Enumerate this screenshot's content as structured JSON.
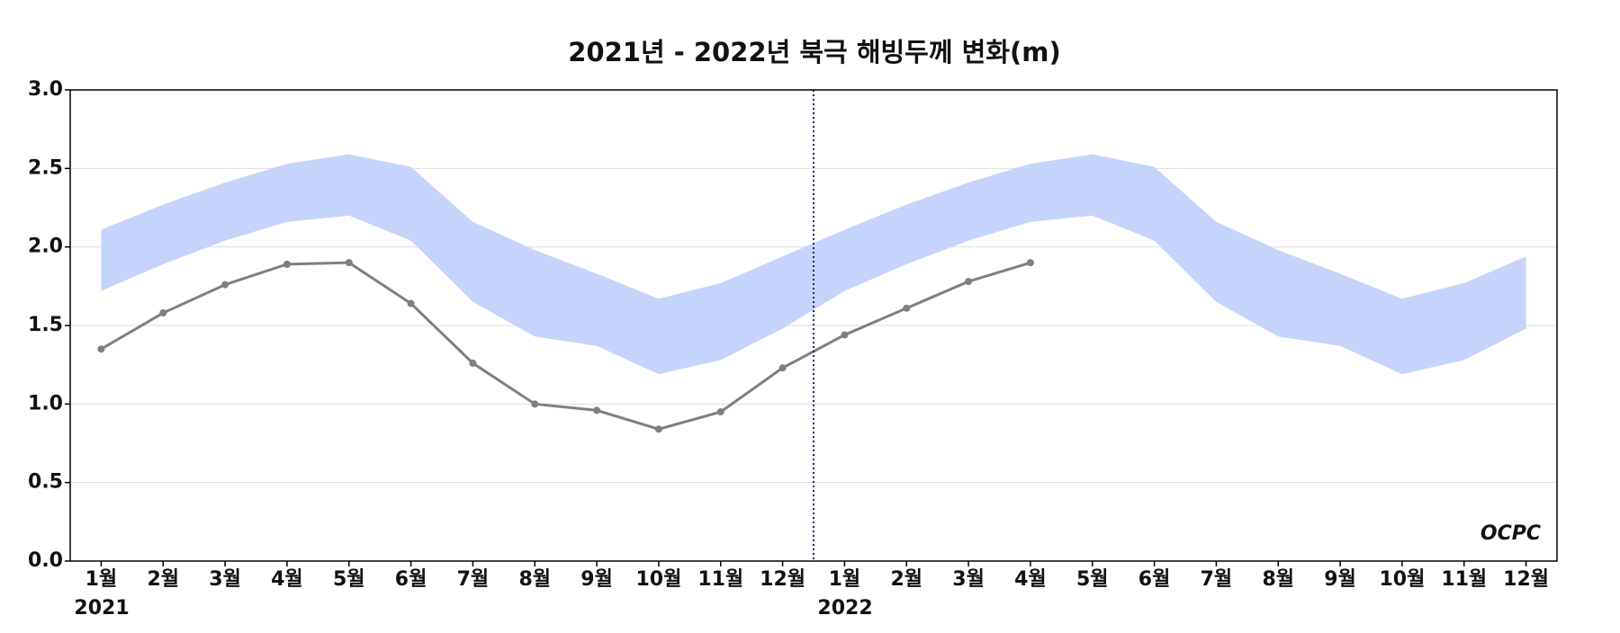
{
  "chart_data": {
    "type": "line_band",
    "title": "2021년 - 2022년 북극 해빙두께 변화(m)",
    "categories": [
      "1월",
      "2월",
      "3월",
      "4월",
      "5월",
      "6월",
      "7월",
      "8월",
      "9월",
      "10월",
      "11월",
      "12월",
      "1월",
      "2월",
      "3월",
      "4월",
      "5월",
      "6월",
      "7월",
      "8월",
      "9월",
      "10월",
      "11월",
      "12월"
    ],
    "year_labels": [
      "2021",
      "2022"
    ],
    "band": {
      "color": "#c6d4fb",
      "upper": [
        2.11,
        2.27,
        2.41,
        2.53,
        2.59,
        2.51,
        2.16,
        1.98,
        1.83,
        1.67,
        1.77,
        1.94,
        2.11,
        2.27,
        2.41,
        2.53,
        2.59,
        2.51,
        2.16,
        1.98,
        1.83,
        1.67,
        1.77,
        1.94
      ],
      "lower": [
        1.72,
        1.89,
        2.04,
        2.16,
        2.2,
        2.04,
        1.65,
        1.43,
        1.37,
        1.19,
        1.28,
        1.48,
        1.72,
        1.89,
        2.04,
        2.16,
        2.2,
        2.04,
        1.65,
        1.43,
        1.37,
        1.19,
        1.28,
        1.48
      ]
    },
    "series": [
      {
        "color": "#7f7f7f",
        "values": [
          1.35,
          1.58,
          1.76,
          1.89,
          1.9,
          1.64,
          1.26,
          1.0,
          0.96,
          0.84,
          0.95,
          1.23,
          1.44,
          1.61,
          1.78,
          1.9,
          null,
          null,
          null,
          null,
          null,
          null,
          null,
          null
        ]
      }
    ],
    "ylim": [
      0,
      3
    ],
    "yticks": [
      {
        "value": 0,
        "label": "0.0"
      },
      0.5,
      {
        "value": 1,
        "label": "1.0"
      },
      1.5,
      {
        "value": 2,
        "label": "2.0"
      },
      2.5,
      {
        "value": 3,
        "label": "3.0"
      }
    ],
    "grid": true,
    "logo": "OCPC"
  }
}
